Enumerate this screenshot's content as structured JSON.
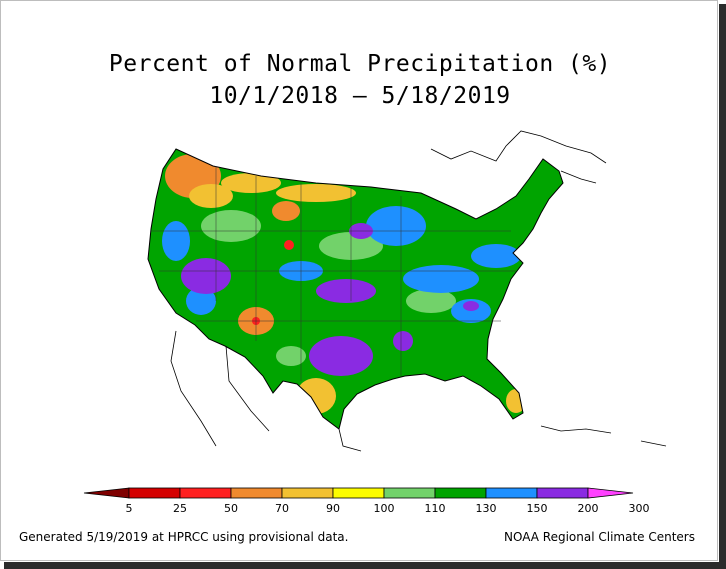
{
  "title": "Percent of Normal Precipitation (%)",
  "date_range": "10/1/2018 – 5/18/2019",
  "legend": {
    "ticks": [
      "5",
      "25",
      "50",
      "70",
      "90",
      "100",
      "110",
      "130",
      "150",
      "200",
      "300"
    ],
    "colors": [
      "#7f0000",
      "#d40000",
      "#ff2020",
      "#f08a2e",
      "#f2c132",
      "#fdfd00",
      "#72d26a",
      "#00a400",
      "#1e90ff",
      "#8a2be2",
      "#ff40ff"
    ]
  },
  "footer": {
    "left": "Generated 5/19/2019 at HPRCC using provisional data.",
    "right": "NOAA Regional Climate Centers"
  },
  "colors": {
    "drought_red": "#ff2020",
    "dry_orange": "#f08a2e",
    "normal_green": "#00a400",
    "wet_blue": "#1e90ff",
    "very_wet_purple": "#8a2be2"
  }
}
